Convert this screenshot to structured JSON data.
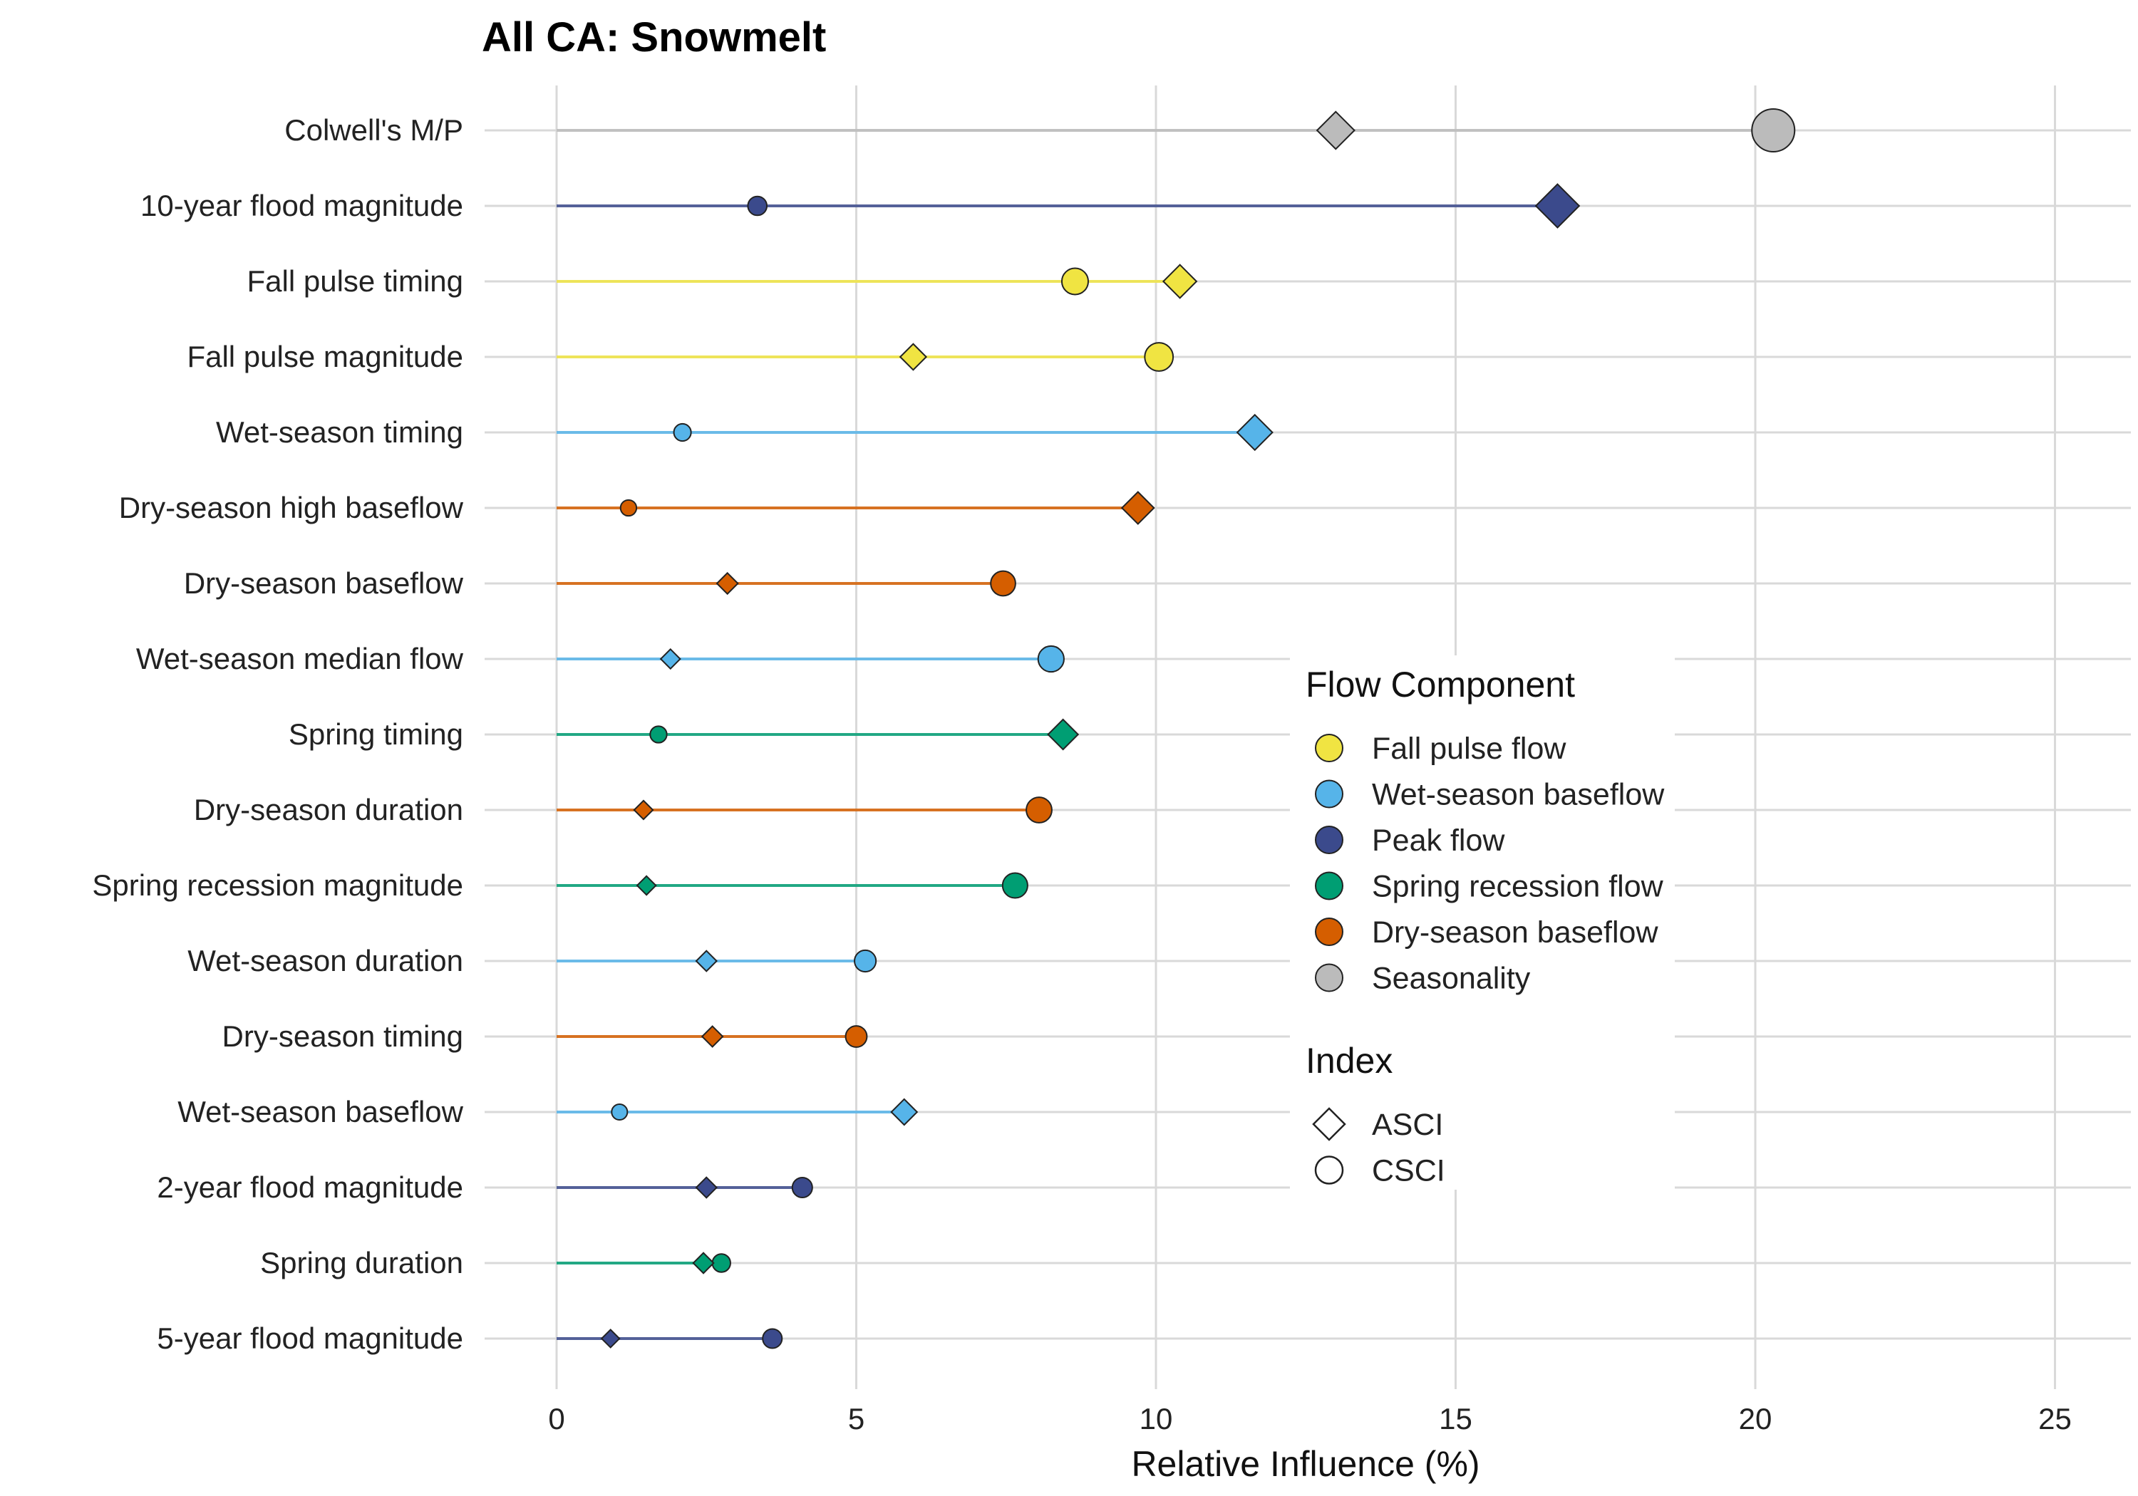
{
  "chart_data": {
    "type": "lollipop",
    "title": "All CA: Snowmelt",
    "xlabel": "Relative Influence (%)",
    "ylabel": "",
    "xlim": [
      -1.5,
      26.2
    ],
    "x_ticks": [
      0,
      5,
      10,
      15,
      20,
      25
    ],
    "grid": true,
    "legend_placement": "right-center",
    "colors": {
      "Fall pulse flow": "#F0E442",
      "Wet-season baseflow": "#56B4E9",
      "Peak flow": "#3B4A8C",
      "Spring recession flow": "#009E73",
      "Dry-season baseflow": "#D55E00",
      "Seasonality": "#BBBBBB"
    },
    "legend": {
      "component_title": "Flow Component",
      "components": [
        "Fall pulse flow",
        "Wet-season baseflow",
        "Peak flow",
        "Spring recession flow",
        "Dry-season baseflow",
        "Seasonality"
      ],
      "index_title": "Index",
      "indices": [
        {
          "name": "ASCI",
          "shape": "diamond"
        },
        {
          "name": "CSCI",
          "shape": "circle"
        }
      ]
    },
    "rows": [
      {
        "metric": "Colwell's M/P",
        "component": "Seasonality",
        "ASCI": 13.0,
        "CSCI": 20.3
      },
      {
        "metric": "10-year flood magnitude",
        "component": "Peak flow",
        "ASCI": 16.7,
        "CSCI": 3.35
      },
      {
        "metric": "Fall pulse timing",
        "component": "Fall pulse flow",
        "ASCI": 10.4,
        "CSCI": 8.65
      },
      {
        "metric": "Fall pulse magnitude",
        "component": "Fall pulse flow",
        "ASCI": 5.95,
        "CSCI": 10.05
      },
      {
        "metric": "Wet-season timing",
        "component": "Wet-season baseflow",
        "ASCI": 11.65,
        "CSCI": 2.1
      },
      {
        "metric": "Dry-season high baseflow",
        "component": "Dry-season baseflow",
        "ASCI": 9.7,
        "CSCI": 1.2
      },
      {
        "metric": "Dry-season baseflow",
        "component": "Dry-season baseflow",
        "ASCI": 2.85,
        "CSCI": 7.45
      },
      {
        "metric": "Wet-season median flow",
        "component": "Wet-season baseflow",
        "ASCI": 1.9,
        "CSCI": 8.25
      },
      {
        "metric": "Spring timing",
        "component": "Spring recession flow",
        "ASCI": 8.45,
        "CSCI": 1.7
      },
      {
        "metric": "Dry-season duration",
        "component": "Dry-season baseflow",
        "ASCI": 1.45,
        "CSCI": 8.05
      },
      {
        "metric": "Spring recession magnitude",
        "component": "Spring recession flow",
        "ASCI": 1.5,
        "CSCI": 7.65
      },
      {
        "metric": "Wet-season duration",
        "component": "Wet-season baseflow",
        "ASCI": 2.5,
        "CSCI": 5.15
      },
      {
        "metric": "Dry-season timing",
        "component": "Dry-season baseflow",
        "ASCI": 2.6,
        "CSCI": 5.0
      },
      {
        "metric": "Wet-season baseflow",
        "component": "Wet-season baseflow",
        "ASCI": 5.8,
        "CSCI": 1.05
      },
      {
        "metric": "2-year flood magnitude",
        "component": "Peak flow",
        "ASCI": 2.5,
        "CSCI": 4.1
      },
      {
        "metric": "Spring duration",
        "component": "Spring recession flow",
        "ASCI": 2.45,
        "CSCI": 2.75
      },
      {
        "metric": "5-year flood magnitude",
        "component": "Peak flow",
        "ASCI": 0.9,
        "CSCI": 3.6
      }
    ]
  }
}
